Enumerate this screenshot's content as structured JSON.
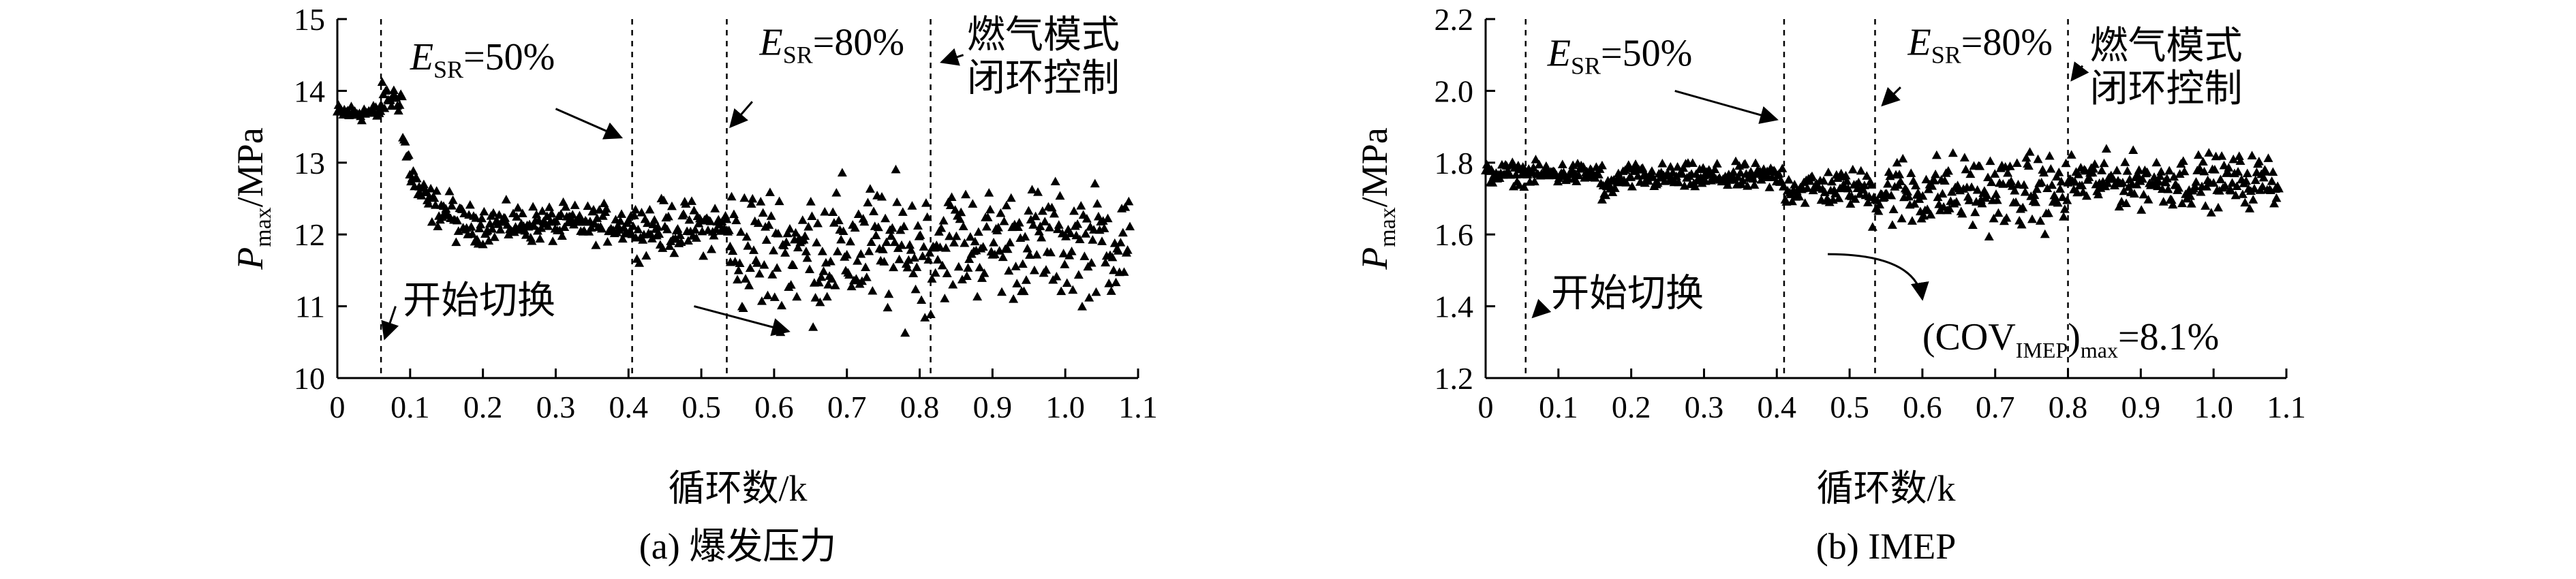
{
  "chart_data": [
    {
      "id": "a",
      "type": "scatter",
      "caption": "(a) 爆发压力",
      "ylabel": {
        "main": "P",
        "sub": "max",
        "unit": "/MPa"
      },
      "xlabel": "循环数/k",
      "xlim": [
        0,
        1.1
      ],
      "ylim": [
        10,
        15
      ],
      "xticks": [
        "0",
        "0.1",
        "0.2",
        "0.3",
        "0.4",
        "0.5",
        "0.6",
        "0.7",
        "0.8",
        "0.9",
        "1.0",
        "1.1"
      ],
      "yticks": [
        "10",
        "11",
        "12",
        "13",
        "14",
        "15"
      ],
      "marker": "triangle",
      "phases": [
        {
          "x0": 0.0,
          "x1": 0.06,
          "mean": 13.7,
          "amp": 0.12
        },
        {
          "x0": 0.06,
          "x1": 0.09,
          "mean_from": 13.9,
          "mean_to": 13.9,
          "amp": 0.2
        },
        {
          "x0": 0.09,
          "x1": 0.16,
          "mean_from": 13.4,
          "mean_to": 12.3,
          "amp": 0.25
        },
        {
          "x0": 0.16,
          "x1": 0.41,
          "mean": 12.15,
          "amp": 0.25
        },
        {
          "x0": 0.41,
          "x1": 0.54,
          "mean": 12.1,
          "amp": 0.35
        },
        {
          "x0": 0.54,
          "x1": 0.82,
          "mean": 11.8,
          "amp": 0.9
        },
        {
          "x0": 0.82,
          "x1": 1.09,
          "mean": 11.9,
          "amp": 0.75
        }
      ],
      "vlines": [
        0.06,
        0.405,
        0.535,
        0.815
      ],
      "annotations": [
        {
          "kind": "esr",
          "pre": "E",
          "sub": "SR",
          "text": "=50%",
          "x": 0.1,
          "y": 14.3
        },
        {
          "kind": "esr",
          "pre": "E",
          "sub": "SR",
          "text": "=80%",
          "x": 0.58,
          "y": 14.5
        },
        {
          "kind": "text",
          "text": "燃气模式",
          "x": 0.865,
          "y": 14.6
        },
        {
          "kind": "text",
          "text": "闭环控制",
          "x": 0.865,
          "y": 14.0
        },
        {
          "kind": "text",
          "text": "开始切换",
          "x": 0.09,
          "y": 10.9
        }
      ],
      "arrows": [
        {
          "from": [
            0.3,
            13.75
          ],
          "to": [
            0.39,
            13.35
          ]
        },
        {
          "from": [
            0.57,
            13.85
          ],
          "to": [
            0.54,
            13.5
          ]
        },
        {
          "from": [
            0.86,
            14.5
          ],
          "to": [
            0.83,
            14.4
          ]
        },
        {
          "from": [
            0.08,
            11.0
          ],
          "to": [
            0.065,
            10.55
          ]
        },
        {
          "from": [
            0.49,
            11.0
          ],
          "to": [
            0.62,
            10.65
          ]
        }
      ]
    },
    {
      "id": "b",
      "type": "scatter",
      "caption": "(b) IMEP",
      "ylabel": {
        "main": "P",
        "sub": "max",
        "unit": "/MPa"
      },
      "xlabel": "循环数/k",
      "xlim": [
        0,
        1.1
      ],
      "ylim": [
        1.2,
        2.2
      ],
      "xticks": [
        "0",
        "0.1",
        "0.2",
        "0.3",
        "0.4",
        "0.5",
        "0.6",
        "0.7",
        "0.8",
        "0.9",
        "1.0",
        "1.1"
      ],
      "yticks": [
        "1.2",
        "1.4",
        "1.6",
        "1.8",
        "2.0",
        "2.2"
      ],
      "marker": "triangle",
      "phases": [
        {
          "x0": 0.0,
          "x1": 0.16,
          "mean": 1.77,
          "amp": 0.03
        },
        {
          "x0": 0.16,
          "x1": 0.19,
          "mean_from": 1.7,
          "mean_to": 1.76,
          "amp": 0.03
        },
        {
          "x0": 0.19,
          "x1": 0.41,
          "mean": 1.76,
          "amp": 0.035
        },
        {
          "x0": 0.41,
          "x1": 0.53,
          "mean": 1.73,
          "amp": 0.05
        },
        {
          "x0": 0.53,
          "x1": 0.8,
          "mean": 1.72,
          "amp": 0.1
        },
        {
          "x0": 0.8,
          "x1": 1.09,
          "mean": 1.75,
          "amp": 0.07
        }
      ],
      "vlines": [
        0.055,
        0.41,
        0.535,
        0.8
      ],
      "annotations": [
        {
          "kind": "esr",
          "pre": "E",
          "sub": "SR",
          "text": "=50%",
          "x": 0.085,
          "y": 2.07
        },
        {
          "kind": "esr",
          "pre": "E",
          "sub": "SR",
          "text": "=80%",
          "x": 0.58,
          "y": 2.1
        },
        {
          "kind": "text",
          "text": "燃气模式",
          "x": 0.83,
          "y": 2.09
        },
        {
          "kind": "text",
          "text": "闭环控制",
          "x": 0.83,
          "y": 1.97
        },
        {
          "kind": "text",
          "text": "开始切换",
          "x": 0.09,
          "y": 1.4
        },
        {
          "kind": "cov",
          "pre": "(COV",
          "sub": "IMEP",
          "mid": ")",
          "sub2": "max",
          "text": "=8.1%",
          "x": 0.6,
          "y": 1.28
        }
      ],
      "arrows": [
        {
          "from": [
            0.26,
            2.0
          ],
          "to": [
            0.4,
            1.92
          ]
        },
        {
          "from": [
            0.57,
            2.01
          ],
          "to": [
            0.545,
            1.96
          ]
        },
        {
          "from": [
            0.82,
            2.07
          ],
          "to": [
            0.805,
            2.03
          ]
        },
        {
          "from": [
            0.08,
            1.4
          ],
          "to": [
            0.065,
            1.37
          ]
        }
      ],
      "curved_arrow": {
        "from": [
          0.47,
          1.545
        ],
        "to": [
          0.6,
          1.42
        ]
      }
    }
  ]
}
